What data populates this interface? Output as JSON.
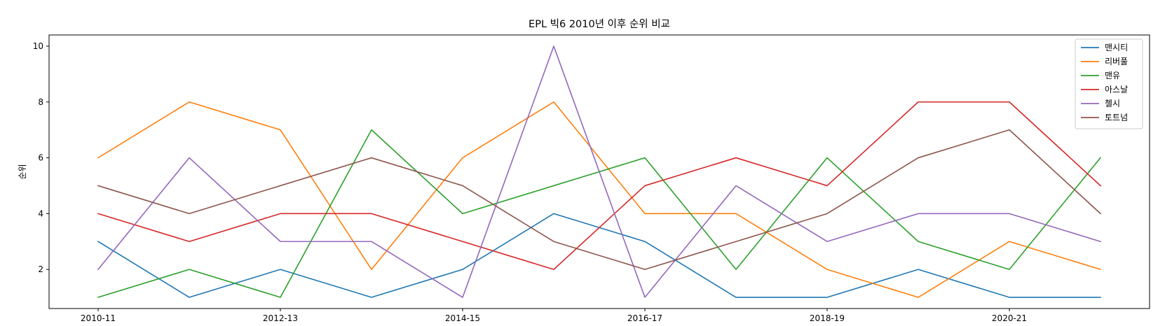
{
  "chart_data": {
    "type": "line",
    "title": "EPL 빅6 2010년 이후 순위 비교",
    "xlabel": "",
    "ylabel": "순위",
    "x": [
      "2010-11",
      "2011-12",
      "2012-13",
      "2013-14",
      "2014-15",
      "2015-16",
      "2016-17",
      "2017-18",
      "2018-19",
      "2019-20",
      "2020-21",
      "2021-22"
    ],
    "x_tick_labels": [
      "2010-11",
      "2012-13",
      "2014-15",
      "2016-17",
      "2018-19",
      "2020-21"
    ],
    "y_ticks": [
      2,
      4,
      6,
      8,
      10
    ],
    "ylim": [
      0.6,
      10.4
    ],
    "grid": false,
    "legend_position": "top-right",
    "series": [
      {
        "name": "맨시티",
        "color": "#1f77b4",
        "values": [
          3,
          1,
          2,
          1,
          2,
          4,
          3,
          1,
          1,
          2,
          1,
          1
        ]
      },
      {
        "name": "리버풀",
        "color": "#ff7f0e",
        "values": [
          6,
          8,
          7,
          2,
          6,
          8,
          4,
          4,
          2,
          1,
          3,
          2
        ]
      },
      {
        "name": "맨유",
        "color": "#2ca02c",
        "values": [
          1,
          2,
          1,
          7,
          4,
          5,
          6,
          2,
          6,
          3,
          2,
          6
        ]
      },
      {
        "name": "아스날",
        "color": "#d62728",
        "values": [
          4,
          3,
          4,
          4,
          3,
          2,
          5,
          6,
          5,
          8,
          8,
          5
        ]
      },
      {
        "name": "첼시",
        "color": "#9467bd",
        "values": [
          2,
          6,
          3,
          3,
          1,
          10,
          1,
          5,
          3,
          4,
          4,
          3
        ]
      },
      {
        "name": "토트넘",
        "color": "#8c564b",
        "values": [
          5,
          4,
          5,
          6,
          5,
          3,
          2,
          3,
          4,
          6,
          7,
          4
        ]
      }
    ]
  }
}
